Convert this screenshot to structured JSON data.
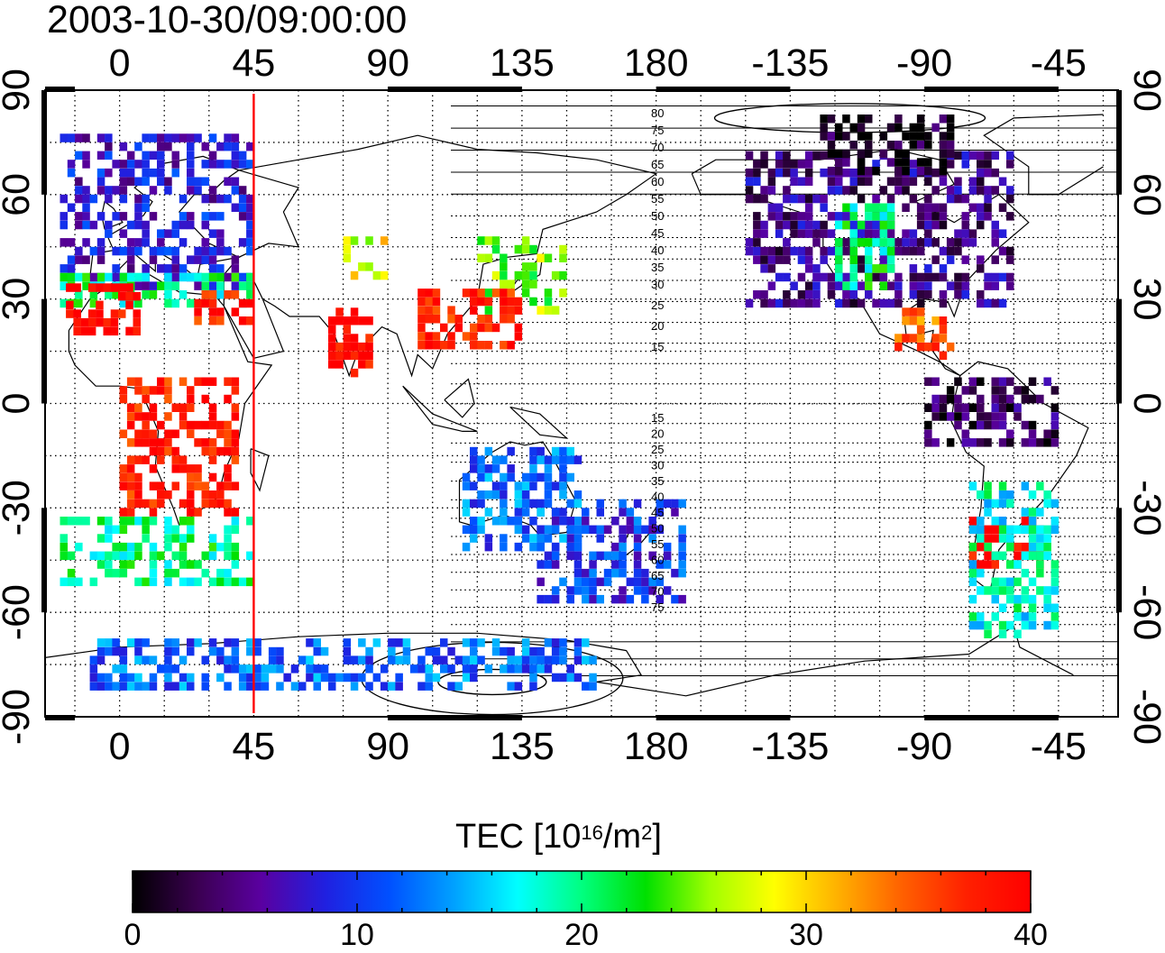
{
  "title": "2003-10-30/09:00:00",
  "colors": {
    "meridian": "#ff0000",
    "frame": "#000000",
    "grid": "#000000"
  },
  "map": {
    "projection": "equirectangular",
    "lon_center": 180,
    "top_lon_labels": [
      "0",
      "45",
      "90",
      "135",
      "180",
      "-135",
      "-90",
      "-45"
    ],
    "bottom_lon_labels": [
      "0",
      "45",
      "90",
      "135",
      "180",
      "-135",
      "-90",
      "-45"
    ],
    "left_lat_labels": [
      "90",
      "60",
      "30",
      "0",
      "-30",
      "-60",
      "-90"
    ],
    "right_lat_labels": [
      "90",
      "60",
      "30",
      "0",
      "-30",
      "-60",
      "-90"
    ],
    "marker_meridian_lon": 45,
    "mlat_contour_labels": [
      "80",
      "75",
      "70",
      "65",
      "60",
      "55",
      "50",
      "45",
      "40",
      "35",
      "30",
      "25",
      "20",
      "15",
      "15",
      "20",
      "25",
      "30",
      "35",
      "40",
      "45",
      "50",
      "55",
      "60",
      "65",
      "70",
      "75"
    ]
  },
  "colorbar": {
    "title_main": "TEC  [10",
    "title_exp": "16",
    "title_mid": "/m",
    "title_exp2": "2",
    "title_end": "]",
    "min": 0,
    "max": 40,
    "tick_labels": [
      "0",
      "10",
      "20",
      "30",
      "40"
    ],
    "stops": [
      "#000000",
      "#3a0050",
      "#5a00a0",
      "#2020e0",
      "#0050ff",
      "#00a0ff",
      "#00ffff",
      "#00ff80",
      "#00e000",
      "#a0ff00",
      "#ffff00",
      "#ffb000",
      "#ff6000",
      "#ff2000",
      "#ff0000"
    ]
  },
  "chart_data": {
    "type": "heatmap",
    "title": "2003-10-30/09:00:00",
    "xlabel": "",
    "ylabel": "",
    "value_label": "TEC  [10^16/m^2]",
    "value_range": [
      0,
      40
    ],
    "x_range": [
      -25,
      335
    ],
    "y_range": [
      -90,
      90
    ],
    "regions": [
      {
        "lon": [
          -20,
          45
        ],
        "lat": [
          35,
          80
        ],
        "tec": 8
      },
      {
        "lon": [
          -20,
          45
        ],
        "lat": [
          30,
          40
        ],
        "tec": 20
      },
      {
        "lon": [
          25,
          45
        ],
        "lat": [
          25,
          35
        ],
        "tec": 38
      },
      {
        "lon": [
          -18,
          5
        ],
        "lat": [
          22,
          35
        ],
        "tec": 40
      },
      {
        "lon": [
          70,
          85
        ],
        "lat": [
          10,
          30
        ],
        "tec": 40
      },
      {
        "lon": [
          75,
          90
        ],
        "lat": [
          38,
          50
        ],
        "tec": 28
      },
      {
        "lon": [
          120,
          150
        ],
        "lat": [
          28,
          50
        ],
        "tec": 25
      },
      {
        "lon": [
          100,
          135
        ],
        "lat": [
          18,
          35
        ],
        "tec": 38
      },
      {
        "lon": [
          140,
          190
        ],
        "lat": [
          -55,
          -25
        ],
        "tec": 10
      },
      {
        "lon": [
          115,
          155
        ],
        "lat": [
          -40,
          -10
        ],
        "tec": 12
      },
      {
        "lon": [
          -150,
          -60
        ],
        "lat": [
          30,
          75
        ],
        "tec": 5
      },
      {
        "lon": [
          -120,
          -100
        ],
        "lat": [
          35,
          60
        ],
        "tec": 20
      },
      {
        "lon": [
          -100,
          -80
        ],
        "lat": [
          15,
          30
        ],
        "tec": 35
      },
      {
        "lon": [
          -75,
          -50
        ],
        "lat": [
          -45,
          -30
        ],
        "tec": 40
      },
      {
        "lon": [
          -75,
          -45
        ],
        "lat": [
          -65,
          -20
        ],
        "tec": 18
      },
      {
        "lon": [
          -90,
          -45
        ],
        "lat": [
          -10,
          10
        ],
        "tec": 3
      },
      {
        "lon": [
          -125,
          -80
        ],
        "lat": [
          68,
          85
        ],
        "tec": 1
      },
      {
        "lon": [
          -10,
          160
        ],
        "lat": [
          -80,
          -65
        ],
        "tec": 12
      },
      {
        "lon": [
          -20,
          45
        ],
        "lat": [
          -50,
          -30
        ],
        "tec": 20
      },
      {
        "lon": [
          0,
          40
        ],
        "lat": [
          -30,
          10
        ],
        "tec": 38
      }
    ]
  }
}
